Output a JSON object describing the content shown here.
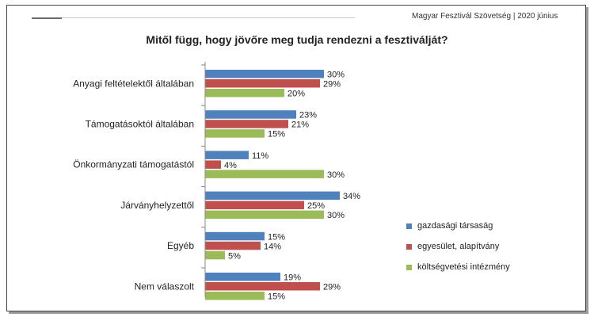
{
  "header": {
    "text": "Magyar Fesztivál Szövetség |  2020 június"
  },
  "chart_data": {
    "type": "bar",
    "orientation": "horizontal",
    "title": "Mitől függ, hogy jövőre meg tudja rendezni a fesztiválját?",
    "categories": [
      "Anyagi feltételektől általában",
      "Támogatásoktól általában",
      "Önkormányzati támogatástól",
      "Járványhelyzettől",
      "Egyéb",
      "Nem válaszolt"
    ],
    "series": [
      {
        "name": "gazdasági társaság",
        "color": "#4f81bd",
        "values": [
          30,
          23,
          11,
          34,
          15,
          19
        ]
      },
      {
        "name": "egyesület, alapítvány",
        "color": "#c0504d",
        "values": [
          29,
          21,
          4,
          25,
          14,
          29
        ]
      },
      {
        "name": "költségvetési intézmény",
        "color": "#9bbb59",
        "values": [
          20,
          15,
          30,
          30,
          5,
          15
        ]
      }
    ],
    "value_suffix": "%",
    "xlim": [
      0,
      40
    ],
    "grid": false,
    "legend_position": "right"
  }
}
